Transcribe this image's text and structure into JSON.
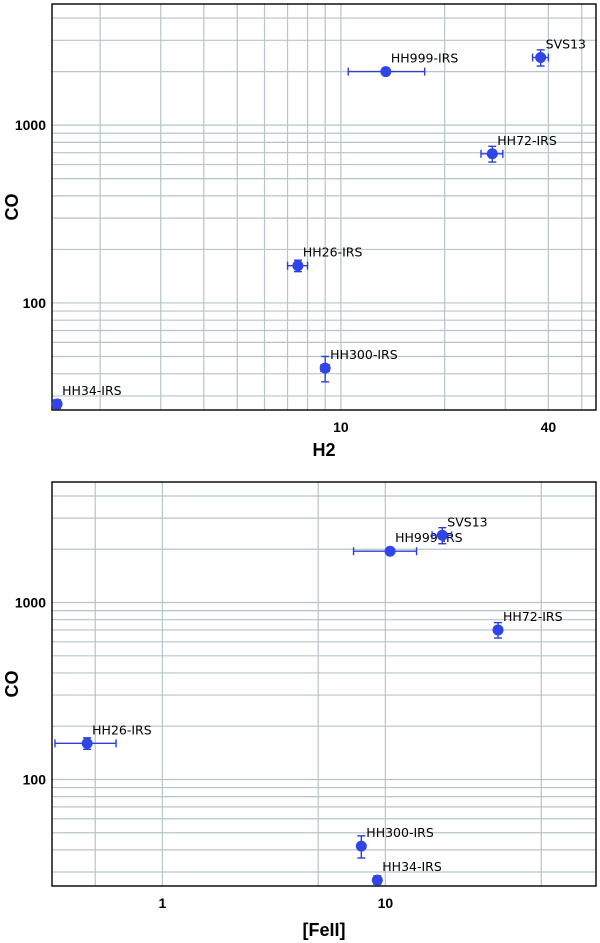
{
  "chart_data": [
    {
      "type": "scatter",
      "xlabel": "H2",
      "ylabel": "CO",
      "x_scale": "log",
      "y_scale": "log",
      "xlim": [
        1.45,
        55
      ],
      "ylim": [
        25,
        4800
      ],
      "x_ticks": [
        10,
        40
      ],
      "y_ticks": [
        100,
        1000
      ],
      "x_grid": [
        2,
        3,
        4,
        5,
        6,
        7,
        8,
        9,
        10,
        20,
        30,
        40,
        50
      ],
      "y_grid": [
        30,
        40,
        50,
        60,
        70,
        80,
        90,
        100,
        200,
        300,
        400,
        500,
        600,
        700,
        800,
        900,
        1000,
        2000,
        3000,
        4000
      ],
      "grid": true,
      "points": [
        {
          "label": "HH34-IRS",
          "x": 1.5,
          "y": 27,
          "xerr": [
            0,
            0
          ],
          "yerr": [
            1.5,
            1.5
          ]
        },
        {
          "label": "HH300-IRS",
          "x": 9.0,
          "y": 43,
          "xerr": [
            0.25,
            0.25
          ],
          "yerr": [
            7,
            7
          ]
        },
        {
          "label": "HH26-IRS",
          "x": 7.5,
          "y": 162,
          "xerr": [
            0.5,
            0.5
          ],
          "yerr": [
            12,
            12
          ]
        },
        {
          "label": "HH999-IRS",
          "x": 13.5,
          "y": 2000,
          "xerr": [
            3,
            4
          ],
          "yerr": [
            0,
            0
          ]
        },
        {
          "label": "HH72-IRS",
          "x": 27.5,
          "y": 690,
          "xerr": [
            2,
            2
          ],
          "yerr": [
            70,
            70
          ]
        },
        {
          "label": "SVS13",
          "x": 38,
          "y": 2400,
          "xerr": [
            2,
            2
          ],
          "yerr": [
            250,
            250
          ]
        }
      ]
    },
    {
      "type": "scatter",
      "xlabel": "[FeII]",
      "ylabel": "CO",
      "x_scale": "log",
      "y_scale": "log",
      "xlim": [
        0.32,
        88
      ],
      "ylim": [
        25,
        4800
      ],
      "x_ticks": [
        1,
        10
      ],
      "y_ticks": [
        100,
        1000
      ],
      "x_grid": [
        0.5,
        1,
        5,
        10,
        50
      ],
      "y_grid": [
        30,
        40,
        50,
        60,
        70,
        80,
        90,
        100,
        200,
        300,
        400,
        500,
        600,
        700,
        800,
        900,
        1000,
        2000,
        3000,
        4000
      ],
      "grid": true,
      "points": [
        {
          "label": "HH26-IRS",
          "x": 0.46,
          "y": 160,
          "xerr": [
            0.13,
            0.16
          ],
          "yerr": [
            12,
            12
          ]
        },
        {
          "label": "HH300-IRS",
          "x": 7.8,
          "y": 42,
          "xerr": [
            0,
            0
          ],
          "yerr": [
            6,
            6
          ]
        },
        {
          "label": "HH34-IRS",
          "x": 9.2,
          "y": 27,
          "xerr": [
            0,
            0
          ],
          "yerr": [
            1.5,
            1.5
          ]
        },
        {
          "label": "HH999-IRS",
          "x": 10.5,
          "y": 1950,
          "xerr": [
            3.3,
            3.3
          ],
          "yerr": [
            0,
            0
          ]
        },
        {
          "label": "SVS13",
          "x": 18,
          "y": 2400,
          "xerr": [
            1.8,
            1.8
          ],
          "yerr": [
            250,
            250
          ]
        },
        {
          "label": "HH72-IRS",
          "x": 32,
          "y": 700,
          "xerr": [
            0,
            0
          ],
          "yerr": [
            70,
            70
          ]
        }
      ]
    }
  ]
}
